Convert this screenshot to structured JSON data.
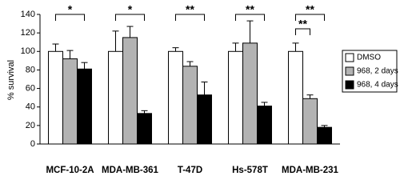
{
  "chart_data": {
    "type": "bar",
    "y_label": "% survival",
    "categories": [
      "MCF-10-2A",
      "MDA-MB-361",
      "T-47D",
      "Hs-578T",
      "MDA-MB-231"
    ],
    "series": [
      {
        "name": "DMSO",
        "color": "#ffffff",
        "values": [
          100,
          100,
          100,
          100,
          100
        ],
        "errors": [
          8,
          22,
          4,
          9,
          9
        ]
      },
      {
        "name": "968, 2 days",
        "color": "#b3b3b3",
        "values": [
          92,
          115,
          84,
          109,
          49
        ],
        "errors": [
          9,
          12,
          5,
          24,
          4
        ]
      },
      {
        "name": "968, 4 days",
        "color": "#000000",
        "values": [
          81,
          33,
          53,
          41,
          18
        ],
        "errors": [
          7,
          3,
          14,
          4,
          2
        ]
      }
    ],
    "ylim": [
      0,
      140
    ],
    "yticks": [
      0,
      20,
      40,
      60,
      80,
      100,
      120,
      140
    ],
    "annotations": [
      "*",
      "*",
      "**",
      "**",
      "**",
      "**"
    ],
    "legend": "right",
    "grid": false
  }
}
